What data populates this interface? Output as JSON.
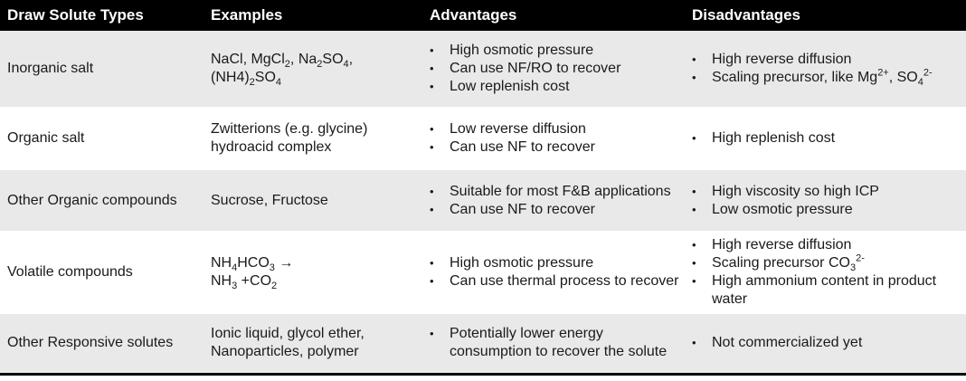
{
  "headers": [
    "Draw Solute Types",
    "Examples",
    "Advantages",
    "Disadvantages"
  ],
  "rows": [
    {
      "type": "Inorganic salt",
      "examples": [
        [
          {
            "t": "NaCl, MgCl"
          },
          {
            "sub": "2"
          },
          {
            "t": ", Na"
          },
          {
            "sub": "2"
          },
          {
            "t": "SO"
          },
          {
            "sub": "4"
          },
          {
            "t": ","
          }
        ],
        [
          {
            "t": "(NH4)"
          },
          {
            "sub": "2"
          },
          {
            "t": "SO"
          },
          {
            "sub": "4"
          }
        ]
      ],
      "advantages": [
        [
          {
            "t": "High osmotic pressure"
          }
        ],
        [
          {
            "t": "Can use NF/RO to recover"
          }
        ],
        [
          {
            "t": "Low replenish cost"
          }
        ]
      ],
      "disadvantages": [
        [
          {
            "t": "High reverse diffusion"
          }
        ],
        [
          {
            "t": "Scaling precursor, like Mg"
          },
          {
            "sup": "2+"
          },
          {
            "t": ", SO"
          },
          {
            "sub": "4"
          },
          {
            "sup": "2-"
          }
        ]
      ]
    },
    {
      "type": "Organic salt",
      "examples": [
        [
          {
            "t": "Zwitterions (e.g. glycine)"
          }
        ],
        [
          {
            "t": "hydroacid complex"
          }
        ]
      ],
      "advantages": [
        [
          {
            "t": "Low reverse diffusion"
          }
        ],
        [
          {
            "t": "Can use NF to recover"
          }
        ]
      ],
      "disadvantages": [
        [
          {
            "t": "High replenish cost"
          }
        ]
      ]
    },
    {
      "type": "Other Organic compounds",
      "examples": [
        [
          {
            "t": "Sucrose, Fructose"
          }
        ]
      ],
      "advantages": [
        [
          {
            "t": "Suitable for most F&B applications"
          }
        ],
        [
          {
            "t": "Can use NF to recover"
          }
        ]
      ],
      "disadvantages": [
        [
          {
            "t": "High viscosity so high ICP"
          }
        ],
        [
          {
            "t": "Low osmotic pressure"
          }
        ]
      ]
    },
    {
      "type": "Volatile compounds",
      "examples": [
        [
          {
            "t": "NH"
          },
          {
            "sub": "4"
          },
          {
            "t": "HCO"
          },
          {
            "sub": "3"
          },
          {
            "t": " →"
          }
        ],
        [
          {
            "t": "NH"
          },
          {
            "sub": "3"
          },
          {
            "t": " +CO"
          },
          {
            "sub": "2"
          }
        ]
      ],
      "advantages": [
        [
          {
            "t": "High osmotic pressure"
          }
        ],
        [
          {
            "t": "Can use thermal process to recover"
          }
        ]
      ],
      "disadvantages": [
        [
          {
            "t": "High reverse diffusion"
          }
        ],
        [
          {
            "t": "Scaling precursor CO"
          },
          {
            "sub": "3"
          },
          {
            "sup": "2-"
          }
        ],
        [
          {
            "t": "High ammonium content in product water"
          }
        ]
      ]
    },
    {
      "type": "Other Responsive solutes",
      "examples": [
        [
          {
            "t": "Ionic liquid, glycol ether,"
          }
        ],
        [
          {
            "t": "Nanoparticles, polymer"
          }
        ]
      ],
      "advantages": [
        [
          {
            "t": "Potentially lower energy consumption to recover the solute"
          }
        ]
      ],
      "disadvantages": [
        [
          {
            "t": "Not commercialized yet"
          }
        ]
      ]
    }
  ]
}
